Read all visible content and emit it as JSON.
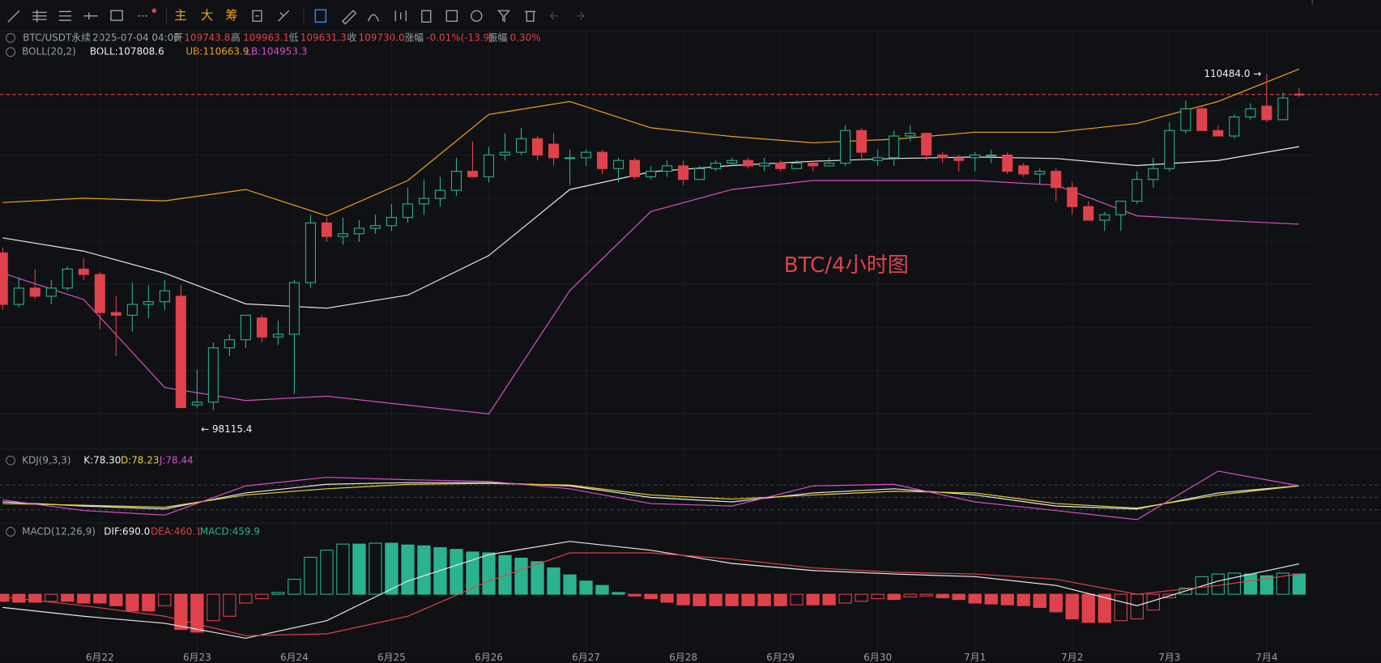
{
  "toolbar": {
    "buttons": [
      "主",
      "大",
      "筹"
    ]
  },
  "legend": {
    "symbol": "BTC/USDT永续",
    "time": "2025-07-04 04:00",
    "open_label": "开",
    "open": "109743.8",
    "high_label": "高",
    "high": "109963.1",
    "low_label": "低",
    "low": "109631.3",
    "close_label": "收",
    "close": "109730.0",
    "change_label": "涨幅",
    "change": "-0.01%(-13.9)",
    "amplitude_label": "振幅",
    "amplitude": "0.30%",
    "boll_name": "BOLL(20,2)",
    "boll": "BOLL:107808.6",
    "ub": "UB:110663.9",
    "lb": "LB:104953.3",
    "kdj_name": "KDJ(9,3,3)",
    "k": "K:78.30",
    "d": "D:78.23",
    "j": "J:78.44",
    "macd_name": "MACD(12,26,9)",
    "dif": "DIF:690.0",
    "dea": "DEA:460.1",
    "macd": "MACD:459.9"
  },
  "chart_data": [
    {
      "type": "candlestick",
      "x_labels": [
        "6月22",
        "6月23",
        "6月24",
        "6月25",
        "6月26",
        "6月27",
        "6月28",
        "6月29",
        "6月30",
        "7月1",
        "7月2",
        "7月3",
        "7月4"
      ],
      "open": [
        103900,
        102000,
        102600,
        102300,
        102600,
        103300,
        103100,
        101700,
        101600,
        102000,
        102100,
        102300,
        98300,
        98400,
        100400,
        100700,
        101500,
        100800,
        100900,
        102800,
        105000,
        104500,
        104600,
        104800,
        104900,
        105200,
        105700,
        105900,
        106200,
        106900,
        106700,
        107500,
        107600,
        108100,
        107900,
        107400,
        107400,
        107600,
        107000,
        107300,
        106700,
        106900,
        107100,
        106600,
        107000,
        107200,
        107300,
        107100,
        107200,
        107000,
        107200,
        107100,
        107200,
        108400,
        107300,
        107400,
        108200,
        108300,
        107500,
        107400,
        107400,
        107500,
        107500,
        107100,
        106800,
        106900,
        106300,
        105600,
        105100,
        105300,
        105800,
        106600,
        107000,
        108400,
        109200,
        108400,
        108200,
        108900,
        109300,
        108800,
        109743.8
      ],
      "high": [
        104100,
        103000,
        103300,
        102900,
        103400,
        103700,
        103200,
        102300,
        102800,
        102700,
        102900,
        102700,
        99600,
        100600,
        100900,
        101600,
        101600,
        101400,
        102900,
        105300,
        105200,
        105200,
        105100,
        105300,
        105700,
        106300,
        106600,
        106700,
        107400,
        108000,
        107800,
        108300,
        108500,
        108200,
        108300,
        107700,
        107700,
        107700,
        107400,
        107400,
        107100,
        107300,
        107300,
        107100,
        107300,
        107400,
        107400,
        107400,
        107300,
        107300,
        107300,
        107400,
        108600,
        108500,
        107700,
        108400,
        108600,
        108300,
        107600,
        107500,
        107600,
        107700,
        107600,
        107200,
        107000,
        107000,
        106500,
        105800,
        105400,
        105700,
        106900,
        107400,
        108700,
        109500,
        109300,
        108600,
        109000,
        109400,
        110484.0,
        109800,
        109963.1
      ],
      "low": [
        101800,
        101900,
        102200,
        102000,
        102500,
        102900,
        101100,
        100100,
        101000,
        101500,
        101800,
        98200,
        98200,
        98115.4,
        100100,
        100400,
        100600,
        100500,
        98700,
        102600,
        104300,
        104200,
        104300,
        104600,
        104700,
        105000,
        105300,
        105600,
        106000,
        106700,
        106500,
        107300,
        107500,
        107300,
        107100,
        106400,
        107100,
        106800,
        106500,
        106600,
        106600,
        106700,
        106400,
        106600,
        106900,
        107100,
        107000,
        106900,
        106900,
        107000,
        106900,
        107100,
        107100,
        107300,
        107100,
        107100,
        108000,
        107300,
        107200,
        106900,
        106900,
        107200,
        106800,
        106700,
        106400,
        105800,
        105300,
        105100,
        104700,
        104700,
        105700,
        106300,
        106900,
        108300,
        108400,
        108200,
        108100,
        108800,
        108700,
        108800,
        109631.3
      ],
      "close": [
        102000,
        102600,
        102300,
        102600,
        103300,
        103100,
        101700,
        101600,
        102000,
        102100,
        102500,
        98200,
        98400,
        100400,
        100700,
        101600,
        100800,
        100900,
        102800,
        105000,
        104500,
        104600,
        104800,
        104900,
        105200,
        105700,
        105900,
        106200,
        106900,
        106700,
        107500,
        107600,
        108100,
        107500,
        107400,
        107400,
        107600,
        107000,
        107300,
        106700,
        106900,
        107100,
        106600,
        107000,
        107200,
        107300,
        107100,
        107200,
        107000,
        107200,
        107100,
        107200,
        108400,
        107600,
        107400,
        108200,
        108300,
        107500,
        107400,
        107300,
        107500,
        107500,
        106900,
        106800,
        106900,
        106300,
        105600,
        105100,
        105300,
        105800,
        106600,
        107000,
        108400,
        109200,
        108400,
        108200,
        108900,
        109200,
        108800,
        109600,
        109730.0
      ],
      "ylim": [
        97000,
        111000
      ],
      "up_color": "#2bb38f",
      "down_color": "#e0424b",
      "last_price": 109730.0,
      "overlay": {
        "x": [
          0,
          5,
          10,
          15,
          20,
          25,
          30,
          35,
          40,
          45,
          50,
          55,
          60,
          65,
          70,
          75,
          80
        ],
        "series": [
          {
            "color": "#f0a020",
            "values": [
              105750,
              105910,
              105810,
              106230,
              105260,
              106560,
              108990,
              109470,
              108500,
              108180,
              107950,
              108080,
              108340,
              108340,
              108660,
              109470,
              110663.9
            ]
          },
          {
            "color": "#e8e8e8",
            "values": [
              104450,
              103960,
              103150,
              102020,
              101860,
              102340,
              103800,
              106230,
              106880,
              107110,
              107270,
              107370,
              107430,
              107370,
              107110,
              107300,
              107808.6
            ]
          },
          {
            "color": "#d94fc5",
            "values": [
              103150,
              102180,
              98940,
              98460,
              98620,
              98290,
              97970,
              102510,
              105420,
              106230,
              106560,
              106560,
              106560,
              106390,
              105260,
              105100,
              104953.3
            ]
          }
        ]
      },
      "annotations": {
        "high": "110484.0 →",
        "low": "← 98115.4",
        "watermark": "BTC/4小时图"
      }
    },
    {
      "type": "line",
      "x": [
        0,
        5,
        10,
        15,
        20,
        25,
        30,
        35,
        40,
        45,
        50,
        55,
        60,
        65,
        70,
        75,
        80
      ],
      "ylim": [
        -25,
        125
      ],
      "yticks": [
        20,
        50,
        80
      ],
      "series": [
        {
          "color": "#e8e8e8",
          "values": [
            39,
            29,
            22,
            61,
            82,
            86,
            86,
            78,
            50,
            39,
            61,
            71,
            56,
            29,
            22,
            61,
            78.3
          ]
        },
        {
          "color": "#e6d23a",
          "values": [
            35,
            31,
            26,
            56,
            71,
            82,
            84,
            80,
            56,
            46,
            56,
            65,
            61,
            35,
            24,
            56,
            78.23
          ]
        },
        {
          "color": "#d94fc5",
          "values": [
            44,
            18,
            7,
            78,
            99,
            93,
            89,
            71,
            35,
            29,
            78,
            82,
            39,
            18,
            -4,
            114,
            78.44
          ]
        }
      ]
    },
    {
      "type": "macd",
      "ylim": [
        -1400,
        1500
      ],
      "up_color": "#2bb38f",
      "down_color": "#e0424b",
      "histogram": [
        -160,
        -180,
        -180,
        -160,
        -160,
        -200,
        -200,
        -260,
        -380,
        -380,
        -260,
        -800,
        -860,
        -600,
        -500,
        -200,
        -100,
        40,
        340,
        840,
        1000,
        1140,
        1140,
        1160,
        1160,
        1120,
        1100,
        1060,
        1020,
        960,
        940,
        880,
        820,
        740,
        600,
        440,
        300,
        200,
        40,
        -40,
        -100,
        -180,
        -240,
        -260,
        -260,
        -260,
        -260,
        -260,
        -260,
        -240,
        -240,
        -240,
        -200,
        -160,
        -100,
        -120,
        -60,
        -40,
        -80,
        -120,
        -200,
        -220,
        -240,
        -260,
        -300,
        -400,
        -560,
        -640,
        -640,
        -600,
        -560,
        -360,
        -80,
        140,
        400,
        460,
        480,
        460,
        420,
        480,
        459.9
      ],
      "x": [
        0,
        5,
        10,
        15,
        20,
        25,
        30,
        35,
        40,
        45,
        50,
        55,
        60,
        65,
        70,
        75,
        80
      ],
      "series": [
        {
          "color": "#e8e8e8",
          "values": [
            -300,
            -500,
            -660,
            -1000,
            -600,
            300,
            900,
            1200,
            1000,
            700,
            540,
            460,
            400,
            200,
            -260,
            300,
            690.0
          ]
        },
        {
          "color": "#e0424b",
          "values": [
            -60,
            -260,
            -500,
            -940,
            -900,
            -500,
            300,
            940,
            940,
            800,
            600,
            500,
            460,
            340,
            0,
            200,
            460.1
          ]
        }
      ]
    }
  ]
}
